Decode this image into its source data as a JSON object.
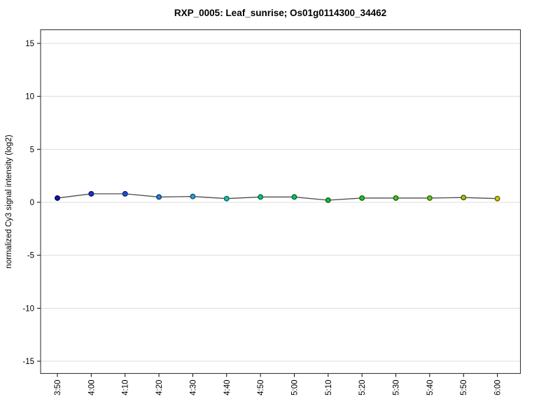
{
  "chart_data": {
    "type": "line",
    "title": "RXP_0005: Leaf_sunrise; Os01g0114300_34462",
    "xlabel": "",
    "ylabel": "normalized Cy3 signal intensity (log2)",
    "categories": [
      "3:50",
      "4:00",
      "4:10",
      "4:20",
      "4:30",
      "4:40",
      "4:50",
      "5:00",
      "5:10",
      "5:20",
      "5:30",
      "5:40",
      "5:50",
      "6:00"
    ],
    "values": [
      0.4,
      0.8,
      0.8,
      0.5,
      0.55,
      0.35,
      0.5,
      0.5,
      0.2,
      0.4,
      0.4,
      0.4,
      0.45,
      0.35
    ],
    "point_fill_colors": [
      "#1313b4",
      "#1c33cf",
      "#1f55dc",
      "#2b7de0",
      "#2aa6d2",
      "#1fc4b4",
      "#10c878",
      "#0fc65e",
      "#16c23e",
      "#2ac428",
      "#44c61f",
      "#68c818",
      "#a0cc12",
      "#d2cc0e"
    ],
    "point_stroke_colors": [
      "#09095e",
      "#0e1b74",
      "#102c7c",
      "#174280",
      "#16587a",
      "#0f6e66",
      "#086e42",
      "#086e34",
      "#0c6e22",
      "#166e16",
      "#256e10",
      "#3a6e0c",
      "#585e08",
      "#6e6a07"
    ],
    "line_color": "#4d4d4d",
    "grid_color": "#dcdcdc",
    "box_color": "#3a3a3a",
    "tick_color": "#000000",
    "yticks": [
      15,
      10,
      5,
      0,
      -5,
      -10,
      -15
    ],
    "ytick_labels": [
      "15",
      "10",
      "5",
      "0",
      "-5",
      "-10",
      "-15"
    ],
    "ylim": [
      -16.2,
      16.3
    ],
    "grid": true,
    "legend": "none",
    "x_tick_rotation": -90
  }
}
